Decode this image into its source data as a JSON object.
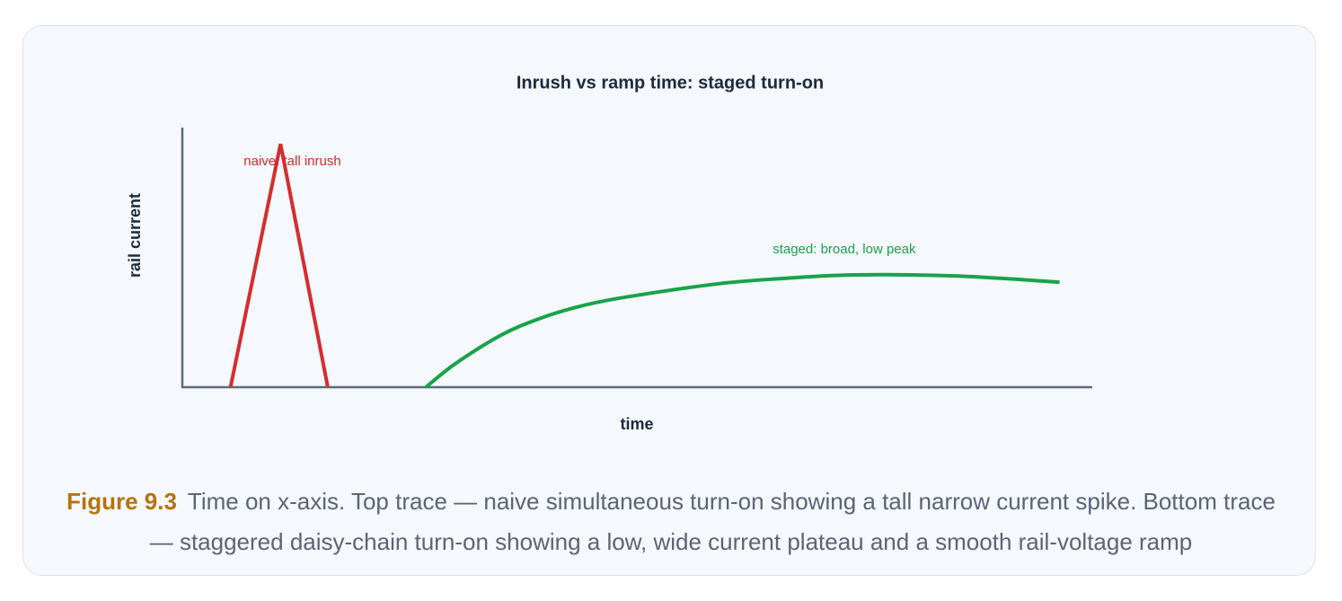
{
  "chart_data": {
    "type": "line",
    "title": "Inrush vs ramp time: staged turn-on",
    "x_label": "time",
    "y_label": "rail current",
    "xlim": [
      0,
      100
    ],
    "ylim": [
      0,
      100
    ],
    "series": [
      {
        "name": "naive: tall inrush",
        "color": "#d62c2c",
        "x": [
          5.3,
          10.8,
          16.0
        ],
        "values": [
          0,
          94,
          0
        ]
      },
      {
        "name": "staged: broad, low peak",
        "color": "#17a34a",
        "x": [
          26.8,
          30,
          35,
          39.2,
          44,
          49.1,
          59,
          66,
          73.8,
          85,
          96.5
        ],
        "values": [
          0,
          9,
          20,
          26.4,
          31.5,
          35,
          40,
          42,
          43.4,
          43,
          40.6
        ]
      }
    ],
    "caption_label": "Figure 9.3",
    "caption": "Time on x-axis. Top trace — naive simultaneous turn-on showing a tall narrow current spike. Bottom trace — staggered daisy-chain turn-on showing a low, wide current plateau and a smooth rail-voltage ramp"
  }
}
